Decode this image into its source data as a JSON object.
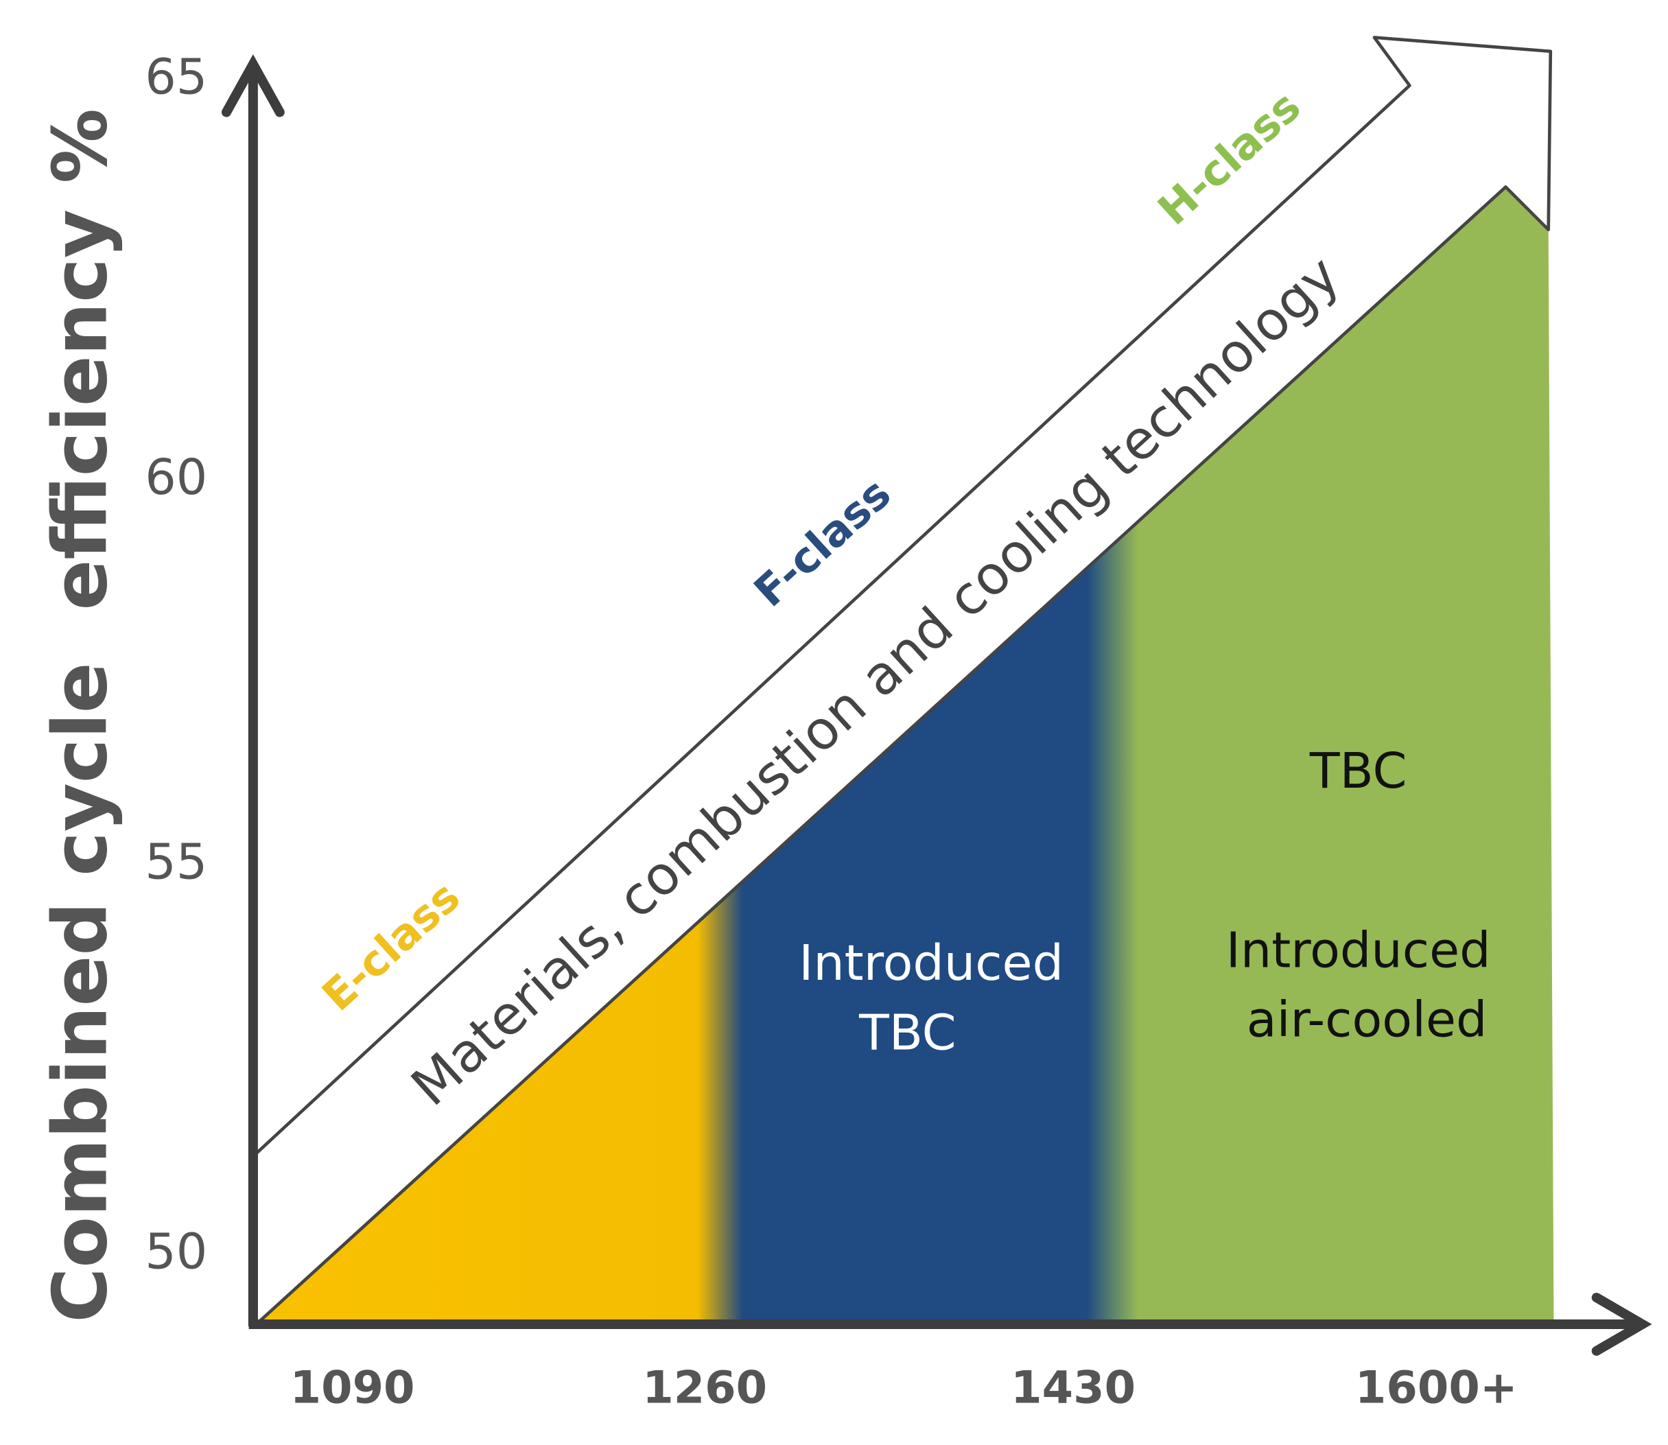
{
  "y_axis": {
    "title": "Combined cycle  efficiency %",
    "ticks": [
      50,
      55,
      60,
      65
    ]
  },
  "x_axis": {
    "ticks": [
      "1090",
      "1260",
      "1430",
      "1600+"
    ]
  },
  "arrow": {
    "label": "Materials, combustion and cooling technology"
  },
  "classes": [
    "E-class",
    "F-class",
    "H-class"
  ],
  "regions": {
    "f_class": [
      "Introduced",
      "TBC"
    ],
    "h_class": [
      "TBC",
      "Introduced",
      "air-cooled"
    ]
  }
}
